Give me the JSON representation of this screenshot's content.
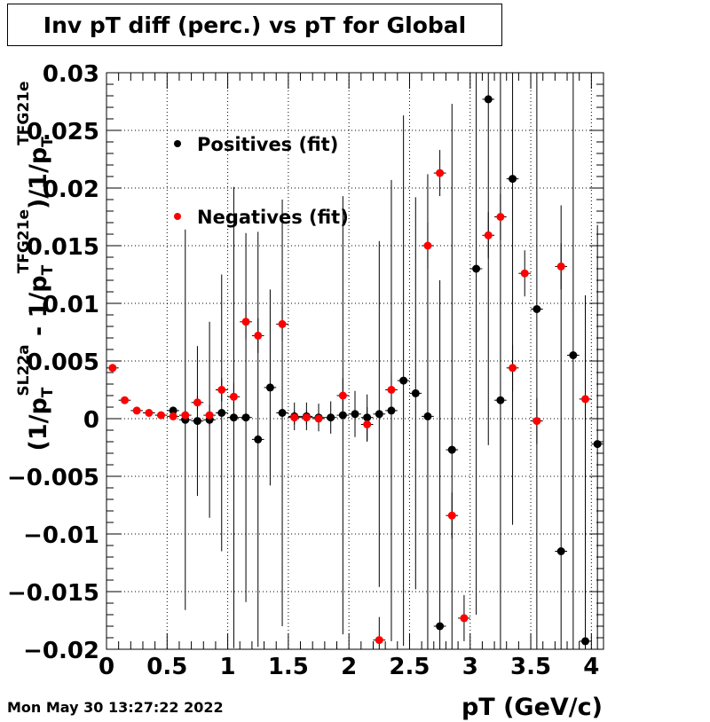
{
  "title": "Inv pT diff (perc.) vs pT for Global",
  "timestamp": "Mon May 30 13:27:22 2022",
  "chart_data": {
    "type": "scatter",
    "title": "Inv pT diff (perc.) vs pT for Global",
    "xlabel": "pT (GeV/c)",
    "ylabel": "(1/p_T^{SL22a} - 1/p_T^{TFG21e})/1/p_T^{TFG21e}",
    "xlim": [
      0,
      4.1
    ],
    "ylim": [
      -0.02,
      0.03
    ],
    "x_ticks": [
      "0",
      "0.5",
      "1",
      "1.5",
      "2",
      "2.5",
      "3",
      "3.5",
      "4"
    ],
    "y_ticks": [
      "−0.02",
      "−0.015",
      "−0.01",
      "−0.005",
      "0",
      "0.005",
      "0.01",
      "0.015",
      "0.02",
      "0.025",
      "0.03"
    ],
    "grid": true,
    "legend_position": "top-left",
    "series": [
      {
        "name": "Positives (fit)",
        "color": "#000000",
        "x": [
          0.55,
          0.65,
          0.75,
          0.85,
          0.95,
          1.05,
          1.15,
          1.25,
          1.35,
          1.45,
          1.55,
          1.65,
          1.75,
          1.85,
          1.95,
          2.05,
          2.15,
          2.25,
          2.35,
          2.45,
          2.55,
          2.65,
          2.75,
          2.85,
          3.05,
          3.15,
          3.25,
          3.35,
          3.55,
          3.75,
          3.85,
          3.95,
          4.05
        ],
        "y": [
          0.0007,
          -0.0001,
          -0.0002,
          -0.0001,
          0.0005,
          0.0001,
          0.0001,
          -0.0018,
          0.0027,
          0.0005,
          0.0002,
          0.0002,
          0.0001,
          0.0001,
          0.0003,
          0.0004,
          0.0001,
          0.0004,
          0.0007,
          0.0033,
          0.0022,
          0.0002,
          -0.018,
          -0.0027,
          0.013,
          0.0277,
          0.0016,
          0.0208,
          0.0095,
          -0.0115,
          0.0055,
          -0.0193,
          -0.0022
        ],
        "err": [
          0.0003,
          0.0165,
          0.0065,
          0.0085,
          0.012,
          0.02,
          0.016,
          0.018,
          0.0085,
          0.0185,
          0.0012,
          0.0012,
          0.0012,
          0.0014,
          0.019,
          0.002,
          0.002,
          0.015,
          0.02,
          0.023,
          0.017,
          0.021,
          0.03,
          0.03,
          0.03,
          0.03,
          0.03,
          0.03,
          0.03,
          0.03,
          0.03,
          0.03,
          0.019
        ]
      },
      {
        "name": "Negatives (fit)",
        "color": "#ff0000",
        "x": [
          0.05,
          0.15,
          0.25,
          0.35,
          0.45,
          0.55,
          0.65,
          0.75,
          0.85,
          0.95,
          1.05,
          1.15,
          1.25,
          1.45,
          1.55,
          1.65,
          1.75,
          1.95,
          2.15,
          2.25,
          2.35,
          2.65,
          2.75,
          2.85,
          2.95,
          3.15,
          3.25,
          3.35,
          3.45,
          3.55,
          3.75,
          3.95
        ],
        "y": [
          0.0044,
          0.0016,
          0.0007,
          0.0005,
          0.0003,
          0.0002,
          0.0003,
          0.0014,
          0.0003,
          0.0025,
          0.0019,
          0.0084,
          0.0072,
          0.0082,
          0.0001,
          0.0001,
          0.0,
          0.002,
          -0.0005,
          -0.0192,
          0.0025,
          0.015,
          0.0213,
          -0.0084,
          -0.0173,
          0.0159,
          0.0175,
          0.0044,
          0.0126,
          -0.0002,
          0.0132,
          0.0017
        ],
        "err": [
          0.0003,
          0.0002,
          0.0002,
          0.0002,
          0.0002,
          0.0003,
          0.0004,
          0.0006,
          0.0009,
          0.001,
          0.0012,
          0.0015,
          0.0015,
          0.0015,
          0.0006,
          0.0006,
          0.0006,
          0.0015,
          0.0015,
          0.002,
          0.0015,
          0.002,
          0.002,
          0.002,
          0.002,
          0.002,
          0.002,
          0.002,
          0.002,
          0.002,
          0.002,
          0.002
        ]
      }
    ]
  }
}
